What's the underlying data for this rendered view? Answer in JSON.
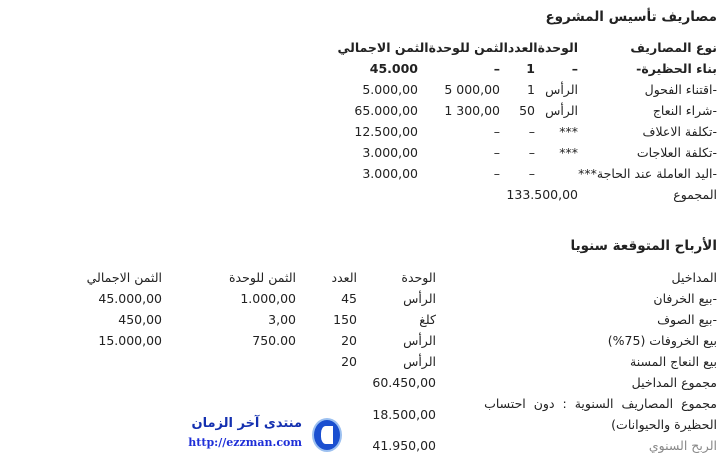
{
  "section1": {
    "title": "مصاريف تأسيس المشروع",
    "headers": [
      "نوع المصاريف",
      "الوحدة",
      "العدد",
      "الثمن للوحدة",
      "الثمن الاجمالي"
    ],
    "rows": [
      {
        "label": "بناء الحظيرة-",
        "unit": "–",
        "count": "1",
        "unit_price": "–",
        "total": "45.000",
        "bold": true
      },
      {
        "label": "-اقتناء الفحول",
        "unit": "الرأس",
        "count": "1",
        "unit_price": "5 000,00",
        "total": "5.000,00"
      },
      {
        "label": "-شراء النعاج",
        "unit": "الرأس",
        "count": "50",
        "unit_price": "1 300,00",
        "total": "65.000,00"
      },
      {
        "label": "-تكلفة الاعلاف",
        "unit": "***",
        "count": "–",
        "unit_price": "–",
        "total": "12.500,00"
      },
      {
        "label": "-تكلفة العلاجات",
        "unit": "***",
        "count": "–",
        "unit_price": "–",
        "total": "3.000,00"
      },
      {
        "label": "-اليد العاملة عند الحاجة***",
        "unit": "",
        "count": "–",
        "unit_price": "–",
        "total": "3.000,00"
      }
    ],
    "sum_label": "المجموع",
    "sum_value": "133.500,00"
  },
  "section2": {
    "title": "الأرباح المتوقعة سنويا",
    "headers": [
      "المداخيل",
      "الوحدة",
      "العدد",
      "الثمن للوحدة",
      "الثمن الاجمالي"
    ],
    "rows": [
      {
        "label": "-بيع الخرفان",
        "unit": "الرأس",
        "count": "45",
        "unit_price": "1.000,00",
        "total": "45.000,00"
      },
      {
        "label": "-بيع الصوف",
        "unit": "كلغ",
        "count": "150",
        "unit_price": "3,00",
        "total": "450,00"
      },
      {
        "label": "بيع الخروفات (75%)",
        "unit": "الرأس",
        "count": "20",
        "unit_price": "750.00",
        "total": "15.000,00"
      },
      {
        "label": "بيع النعاج المسنة",
        "unit": "الرأس",
        "count": "20",
        "unit_price": "",
        "total": ""
      }
    ],
    "income_sum_label": "مجموع المداخيل",
    "income_sum_value": "60.450,00",
    "annual_expenses_label_line1": "مجموع المصاريف السنوية : دون احتساب",
    "annual_expenses_label_line2": "الحظيرة والحيوانات)",
    "annual_expenses_value": "18.500,00",
    "annual_profit_label": "الربح السنوي",
    "annual_profit_value": "41.950,00"
  },
  "watermark": {
    "title": "منتدى آخر الزمان",
    "url": "http://ezzman.com",
    "logo_color": "#1a4fd0"
  }
}
